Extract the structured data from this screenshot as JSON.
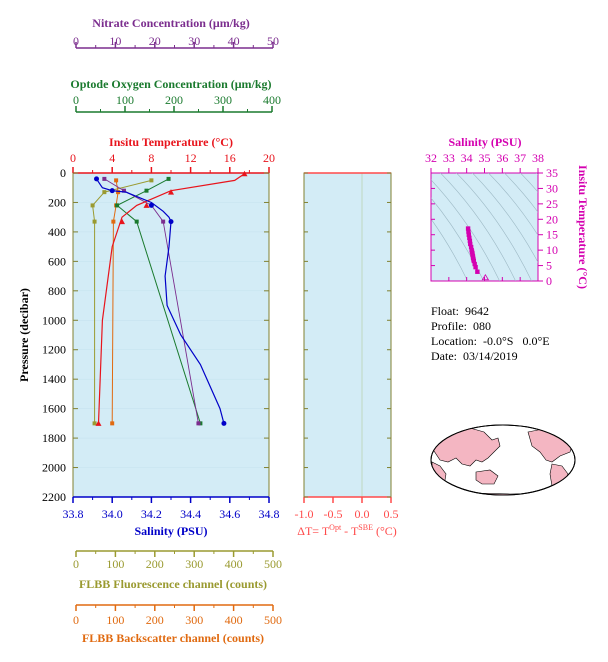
{
  "colors": {
    "background": "#d3ecf6",
    "nitrate": "#7b2d8e",
    "oxygen": "#1a7a2e",
    "temperature": "#e8141c",
    "salinity": "#0000c8",
    "fluorescence": "#9a9a30",
    "backscatter": "#e06a10",
    "delta_t": "#ff4a4a",
    "ts_plot": "#d400b0",
    "map_land": "#f4b6c2"
  },
  "axes": {
    "nitrate": {
      "label": "Nitrate Concentration (μm/kg)",
      "ticks": [
        "0",
        "10",
        "20",
        "30",
        "40",
        "50"
      ],
      "range": [
        0,
        50
      ]
    },
    "oxygen": {
      "label": "Optode Oxygen Concentration (μm/kg)",
      "ticks": [
        "0",
        "100",
        "200",
        "300",
        "400"
      ],
      "range": [
        0,
        400
      ]
    },
    "temperature": {
      "label": "Insitu Temperature (°C)",
      "ticks": [
        "0",
        "4",
        "8",
        "12",
        "16",
        "20"
      ],
      "range": [
        0,
        20
      ]
    },
    "pressure": {
      "label": "Pressure (decibar)",
      "ticks": [
        "0",
        "200",
        "400",
        "600",
        "800",
        "1000",
        "1200",
        "1400",
        "1600",
        "1800",
        "2000",
        "2200"
      ],
      "range": [
        0,
        2200
      ]
    },
    "salinity": {
      "label": "Salinity (PSU)",
      "ticks": [
        "33.8",
        "34.0",
        "34.2",
        "34.4",
        "34.6",
        "34.8"
      ],
      "range": [
        33.8,
        34.8
      ]
    },
    "fluorescence": {
      "label": "FLBB Fluorescence channel (counts)",
      "ticks": [
        "0",
        "100",
        "200",
        "300",
        "400",
        "500"
      ],
      "range": [
        0,
        500
      ]
    },
    "backscatter": {
      "label": "FLBB Backscatter channel (counts)",
      "ticks": [
        "0",
        "100",
        "200",
        "300",
        "400",
        "500"
      ],
      "range": [
        0,
        500
      ]
    },
    "delta_t": {
      "label": "ΔT= T",
      "sup1": "Opt",
      "mid": " - T",
      "sup2": "SBE",
      "unit": " (°C)",
      "ticks": [
        "-1.0",
        "-0.5",
        "0.0",
        "0.5"
      ],
      "range": [
        -1.0,
        0.5
      ]
    },
    "ts_salinity": {
      "label": "Salinity (PSU)",
      "ticks": [
        "32",
        "33",
        "34",
        "35",
        "36",
        "37",
        "38"
      ],
      "range": [
        32,
        38
      ]
    },
    "ts_temperature": {
      "label": "Insitu Temperature (°C)",
      "ticks": [
        "0",
        "5",
        "10",
        "15",
        "20",
        "25",
        "30",
        "35"
      ],
      "range": [
        0,
        35
      ]
    }
  },
  "info": {
    "float": "Float:  9642",
    "profile": "Profile:  080",
    "location": "Location:  -0.0°S   0.0°E",
    "date": "Date:  03/14/2019"
  },
  "chart_data": [
    {
      "type": "line",
      "series": [
        {
          "key": "temperature",
          "axis": "temperature",
          "x": [
            17.5,
            16.5,
            10.0,
            6.5,
            5.0,
            4.0,
            3.0,
            2.6
          ],
          "y": [
            5,
            50,
            120,
            220,
            300,
            500,
            1000,
            1700
          ],
          "marker_x": [
            17.5,
            10.0,
            7.5,
            5.0,
            2.6
          ],
          "marker_y": [
            5,
            130,
            220,
            330,
            1700
          ]
        },
        {
          "key": "salinity",
          "axis": "salinity",
          "x": [
            33.92,
            33.94,
            33.95,
            34.0,
            34.07,
            34.2,
            34.26,
            34.29,
            34.3,
            34.29,
            34.27,
            34.28,
            34.35,
            34.45,
            34.55,
            34.57
          ],
          "y": [
            40,
            80,
            100,
            120,
            130,
            200,
            260,
            300,
            330,
            500,
            700,
            900,
            1100,
            1300,
            1600,
            1700
          ],
          "marker_x": [
            33.92,
            34.0,
            34.2,
            34.3,
            34.57
          ],
          "marker_y": [
            40,
            120,
            220,
            330,
            1700
          ]
        },
        {
          "key": "nitrate",
          "axis": "nitrate",
          "x": [
            8.0,
            13.0,
            20.0,
            23.0,
            32.0
          ],
          "y": [
            40,
            120,
            220,
            330,
            1700
          ]
        },
        {
          "key": "oxygen",
          "axis": "oxygen",
          "x": [
            195.0,
            150.0,
            90.0,
            130.0,
            260.0
          ],
          "y": [
            40,
            120,
            220,
            330,
            1700
          ]
        },
        {
          "key": "fluorescence",
          "axis": "fluorescence",
          "x": [
            200.0,
            80.0,
            50.0,
            55.0,
            55.0
          ],
          "y": [
            50,
            130,
            220,
            330,
            1700
          ]
        },
        {
          "key": "backscatter",
          "axis": "backscatter",
          "x": [
            110.0,
            115.0,
            110.0,
            103.0,
            100.0
          ],
          "y": [
            50,
            130,
            220,
            330,
            1700
          ]
        }
      ]
    },
    {
      "type": "scatter",
      "x_axis": "ts_salinity",
      "y_axis": "ts_temperature",
      "x": [
        34.6,
        34.5,
        34.45,
        34.4,
        34.38,
        34.36,
        34.35,
        34.33,
        34.32,
        34.3,
        34.28,
        34.25,
        34.2,
        34.18,
        34.15,
        34.12,
        34.1,
        34.08
      ],
      "y": [
        3.0,
        4.5,
        5.5,
        6.5,
        7.0,
        7.5,
        8.0,
        8.5,
        9.0,
        9.5,
        10.0,
        11.0,
        12.0,
        13.0,
        14.0,
        15.0,
        16.0,
        17.0
      ]
    }
  ]
}
